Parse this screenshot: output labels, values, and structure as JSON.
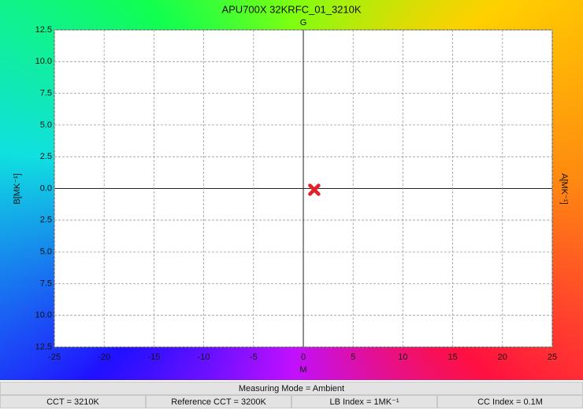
{
  "chart_data": {
    "type": "scatter",
    "title": "APU700X 32KRFC_01_3210K",
    "top_label": "G",
    "xlabel": "M",
    "ylabel": "B[MK⁻¹]",
    "y2label": "A[MK⁻¹]",
    "x": [
      1.1
    ],
    "values": [
      -0.1
    ],
    "color": "#e3202a",
    "xlim": [
      -25,
      25
    ],
    "xticks": [
      -25,
      -20,
      -15,
      -10,
      -5,
      0,
      5,
      10,
      15,
      20,
      25
    ],
    "ylim": [
      -12.5,
      12.5
    ],
    "yticks": [
      12.5,
      {
        "value": 10,
        "label": "10.0"
      },
      7.5,
      {
        "value": 5,
        "label": "5.0"
      },
      2.5,
      {
        "value": 0,
        "label": "0.0"
      },
      {
        "value": -2.5,
        "label": "2.5"
      },
      {
        "value": -5,
        "label": "5.0"
      },
      {
        "value": -7.5,
        "label": "7.5"
      },
      {
        "value": -10,
        "label": "10.0"
      },
      {
        "value": -12.5,
        "label": "12.5"
      }
    ],
    "grid": true
  },
  "info": {
    "mode": "Measuring Mode = Ambient",
    "cells": [
      "CCT = 3210K",
      "Reference CCT = 3200K",
      "LB Index = 1MK⁻¹",
      "CC Index = 0.1M"
    ]
  }
}
